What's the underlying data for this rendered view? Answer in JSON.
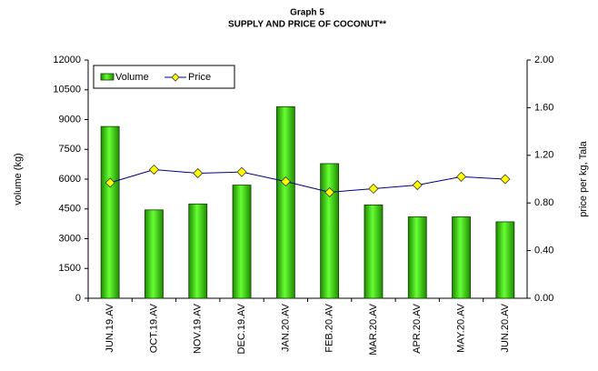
{
  "chart_data": {
    "type": "bar_line",
    "title": "Graph 5",
    "subtitle": "SUPPLY AND PRICE OF COCONUT**",
    "categories": [
      "JUN.19.AV",
      "OCT.19.AV",
      "NOV.19.AV",
      "DEC.19.AV",
      "JAN.20.AV",
      "FEB.20.AV",
      "MAR.20.AV",
      "APR.20.AV",
      "MAY.20.AV",
      "JUN.20.AV"
    ],
    "series": [
      {
        "name": "Volume",
        "color": "#33cc00",
        "values": [
          8650,
          4450,
          4750,
          5700,
          9650,
          6780,
          4700,
          4100,
          4100,
          3850
        ]
      },
      {
        "name": "Price",
        "color": "#000080",
        "marker_color": "#ffff00",
        "axis": "y2",
        "values": [
          0.97,
          1.08,
          1.05,
          1.06,
          0.98,
          0.89,
          0.92,
          0.95,
          1.02,
          1.0
        ]
      }
    ],
    "ylabel": "volume (kg)",
    "y2label": "price per kg, Tala",
    "ylim": [
      0,
      12000
    ],
    "yticks": [
      0,
      1500,
      3000,
      4500,
      6000,
      7500,
      9000,
      10500,
      12000
    ],
    "y2lim": [
      0,
      2
    ],
    "y2ticks": [
      {
        "value": 0,
        "label": "0.00"
      },
      {
        "value": 0.4,
        "label": "0.40"
      },
      {
        "value": 0.8,
        "label": "0.80"
      },
      {
        "value": 1.2,
        "label": "1.20"
      },
      {
        "value": 1.6,
        "label": "1.60"
      },
      {
        "value": 2,
        "label": "2.00"
      }
    ],
    "legend": "top-left"
  }
}
